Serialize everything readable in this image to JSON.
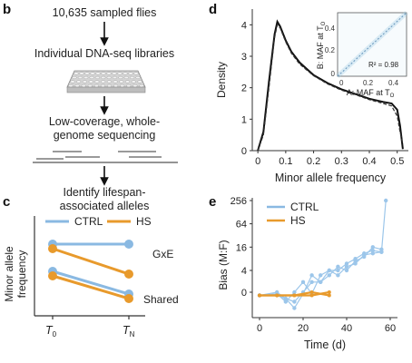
{
  "panel_b": {
    "letter": "b",
    "steps": [
      "10,635 sampled flies",
      "Individual DNA-seq libraries",
      "Low-coverage, whole-",
      "genome sequencing",
      "Identify lifespan-",
      "associated alleles"
    ]
  },
  "panel_c": {
    "letter": "c",
    "ylabel": "Minor allele frequency",
    "ylabel_lines": [
      "Minor allele",
      "frequency"
    ],
    "legend": [
      "CTRL",
      "HS"
    ],
    "annotations": [
      "GxE",
      "Shared"
    ],
    "xticks": [
      "T",
      "T"
    ],
    "xtick_subs": [
      "0",
      "N"
    ],
    "colors": {
      "ctrl": "#8ab9e2",
      "hs": "#e89a2c"
    }
  },
  "panel_d": {
    "letter": "d",
    "ylabel": "Density",
    "xlabel": "Minor allele frequency",
    "yticks": [
      "0",
      "1",
      "2",
      "3",
      "4"
    ],
    "xticks": [
      "0",
      "0.1",
      "0.2",
      "0.3",
      "0.4",
      "0.5"
    ],
    "inset": {
      "yticks": [
        "0.4",
        "0.2",
        "0"
      ],
      "xticks": [
        "0",
        "0.2",
        "0.4"
      ],
      "ylabel": "B: MAF at T",
      "ylabel_sub": "O",
      "xlabel": "A: MAF at T",
      "xlabel_sub": "O",
      "r2": "R² = 0.98"
    }
  },
  "panel_e": {
    "letter": "e",
    "ylabel": "Bias (M:F)",
    "xlabel": "Time (d)",
    "yticks": [
      "256",
      "64",
      "16",
      "4",
      "0"
    ],
    "xticks": [
      "0",
      "20",
      "40",
      "60"
    ],
    "legend": [
      "CTRL",
      "HS"
    ]
  },
  "chart_data": [
    {
      "type": "line",
      "title": "",
      "xlabel": "Minor allele frequency",
      "ylabel": "Density",
      "xlim": [
        -0.02,
        0.54
      ],
      "ylim": [
        0,
        4.5
      ],
      "series": [
        {
          "x": [
            0.0,
            0.02,
            0.04,
            0.06,
            0.07,
            0.08,
            0.1,
            0.12,
            0.15,
            0.2,
            0.25,
            0.3,
            0.35,
            0.4,
            0.45,
            0.48,
            0.5,
            0.51,
            0.52
          ],
          "y": [
            0.0,
            0.6,
            2.2,
            3.7,
            4.1,
            3.95,
            3.5,
            3.15,
            2.8,
            2.4,
            2.15,
            1.95,
            1.8,
            1.65,
            1.55,
            1.5,
            1.3,
            0.8,
            0.05
          ]
        },
        {
          "x": [
            0.0,
            0.02,
            0.04,
            0.06,
            0.07,
            0.08,
            0.1,
            0.12,
            0.15,
            0.2,
            0.25,
            0.3,
            0.35,
            0.4,
            0.45,
            0.48,
            0.5,
            0.51,
            0.52
          ],
          "y": [
            0.0,
            0.5,
            2.0,
            3.6,
            4.0,
            3.9,
            3.45,
            3.1,
            2.75,
            2.38,
            2.12,
            1.92,
            1.78,
            1.62,
            1.5,
            1.42,
            1.1,
            0.6,
            0.2
          ]
        }
      ]
    },
    {
      "type": "scatter",
      "xlabel": "A: MAF at T",
      "ylabel": "B: MAF at T",
      "xlim": [
        0,
        0.5
      ],
      "ylim": [
        0,
        0.5
      ],
      "annotation": "R² = 0.98"
    },
    {
      "type": "line",
      "xlabel": "Time (d)",
      "ylabel": "Bias (M:F)",
      "xlim": [
        -2,
        62
      ],
      "yticks": [
        "0",
        "4",
        "16",
        "64",
        "256"
      ],
      "series": [
        {
          "name": "CTRL",
          "x": [
            0,
            8,
            12,
            16,
            20,
            24,
            28,
            32,
            36,
            40,
            44,
            48,
            52,
            56,
            58
          ],
          "y": [
            -1,
            1,
            -3,
            0,
            2,
            1,
            3,
            4,
            3,
            5,
            6,
            10,
            11,
            12,
            256
          ]
        },
        {
          "name": "CTRL",
          "x": [
            0,
            8,
            12,
            16,
            20,
            24,
            28,
            32,
            36,
            40,
            44,
            48,
            52,
            56
          ],
          "y": [
            -1,
            0,
            -2,
            -5,
            1,
            3,
            2,
            3,
            5,
            4,
            7,
            9,
            16,
            14
          ]
        },
        {
          "name": "CTRL",
          "x": [
            0,
            8,
            12,
            16,
            20,
            24,
            28,
            32,
            36,
            40,
            44,
            48,
            52,
            56
          ],
          "y": [
            -1,
            -1,
            -2,
            -3,
            0,
            2,
            2,
            4,
            4,
            6,
            8,
            11,
            13,
            12
          ]
        },
        {
          "name": "HS",
          "x": [
            0,
            8,
            16,
            24,
            32
          ],
          "y": [
            -1,
            -1,
            -1,
            -1,
            0
          ]
        },
        {
          "name": "HS",
          "x": [
            0,
            8,
            16,
            24,
            32
          ],
          "y": [
            -1,
            -1,
            -1,
            0,
            -1
          ]
        }
      ]
    }
  ]
}
